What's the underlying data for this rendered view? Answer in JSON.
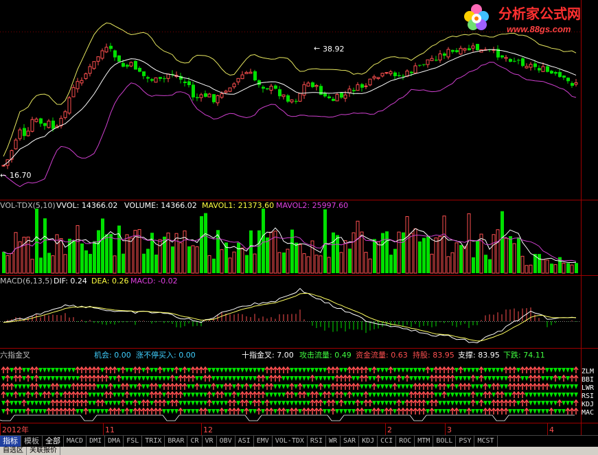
{
  "logo": {
    "title": "分析家公式网",
    "url": "www.88gs.com"
  },
  "price_panel": {
    "high_label": "38.92",
    "low_label": "16.70"
  },
  "vol_panel": {
    "name": "VOL-TDX(5,10)",
    "vvol": "VVOL: 14366.02",
    "volume": "VOLUME: 14366.02",
    "mavol1": "MAVOL1: 21373.60",
    "mavol2": "MAVOL2: 25997.60"
  },
  "macd_panel": {
    "name": "MACD(6,13,5)",
    "dif": "DIF: 0.24",
    "dea": "DEA: 0.26",
    "macd": "MACD: -0.02"
  },
  "six_panel": {
    "name": "六指金叉",
    "jihui": "机会: 0.00",
    "zhangting": "涨不停买入: 0.00",
    "shizhi": "十指金叉: 7.00",
    "gongji": "攻击流量: 0.49",
    "zijin": "资金流量: 0.63",
    "chigu": "持股: 83.95",
    "zhicheng": "支撑: 83.95",
    "xiadie": "下跌: 74.11",
    "row_labels": [
      "ZLM",
      "BBI",
      "LWR",
      "RSI",
      "KDJ",
      "MAC"
    ]
  },
  "date_axis": [
    "2012年",
    "11",
    "12",
    "2",
    "3",
    "4"
  ],
  "tabs": [
    "指标",
    "模板",
    "全部",
    "MACD",
    "DMI",
    "DMA",
    "FSL",
    "TRIX",
    "BRAR",
    "CR",
    "VR",
    "OBV",
    "ASI",
    "EMV",
    "VOL-TDX",
    "RSI",
    "WR",
    "SAR",
    "KDJ",
    "CCI",
    "ROC",
    "MTM",
    "BOLL",
    "PSY",
    "MCST"
  ],
  "bottom_tabs": [
    "自选区",
    "关联报价"
  ],
  "colors": {
    "up": "#ff5050",
    "down": "#00e000",
    "boll_up": "#e8e860",
    "boll_mid": "#ffffff",
    "boll_low": "#d040d0",
    "grid": "#800000"
  }
}
